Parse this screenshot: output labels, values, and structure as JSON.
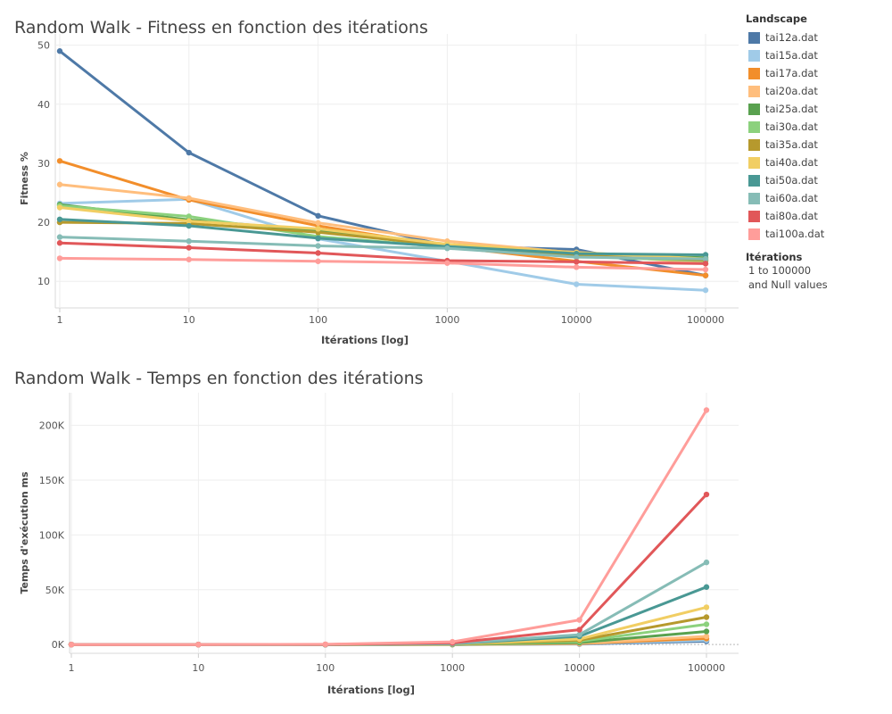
{
  "chart_data": [
    {
      "type": "line",
      "title": "Random Walk - Fitness en fonction des itérations",
      "xlabel": "Itérations [log]",
      "ylabel": "Fitness %",
      "xscale": "log",
      "x": [
        1,
        10,
        100,
        1000,
        10000,
        100000
      ],
      "x_tick_labels": [
        "1",
        "10",
        "100",
        "1000",
        "10000",
        "100000"
      ],
      "y_ticks": [
        10,
        20,
        30,
        40,
        50
      ],
      "y_tick_labels": [
        "10",
        "20",
        "30",
        "40",
        "50"
      ],
      "ylim": [
        5.5,
        51
      ],
      "grid": true,
      "series": [
        {
          "name": "tai12a.dat",
          "values": [
            49.0,
            31.8,
            21.1,
            16.0,
            15.4,
            11.0
          ]
        },
        {
          "name": "tai15a.dat",
          "values": [
            23.2,
            23.9,
            17.2,
            13.4,
            9.5,
            8.5
          ]
        },
        {
          "name": "tai17a.dat",
          "values": [
            30.4,
            23.8,
            19.4,
            15.9,
            13.4,
            11.0
          ]
        },
        {
          "name": "tai20a.dat",
          "values": [
            26.4,
            24.1,
            19.9,
            16.8,
            14.8,
            13.0
          ]
        },
        {
          "name": "tai25a.dat",
          "values": [
            23.0,
            20.4,
            18.6,
            15.9,
            14.6,
            14.0
          ]
        },
        {
          "name": "tai30a.dat",
          "values": [
            22.8,
            21.0,
            17.6,
            15.8,
            14.2,
            13.5
          ]
        },
        {
          "name": "tai35a.dat",
          "values": [
            20.0,
            19.8,
            18.3,
            16.1,
            14.5,
            13.6
          ]
        },
        {
          "name": "tai40a.dat",
          "values": [
            22.5,
            20.2,
            18.9,
            16.3,
            14.9,
            13.8
          ]
        },
        {
          "name": "tai50a.dat",
          "values": [
            20.5,
            19.4,
            17.3,
            15.9,
            14.7,
            14.5
          ]
        },
        {
          "name": "tai60a.dat",
          "values": [
            17.5,
            16.8,
            16.0,
            15.6,
            14.1,
            13.8
          ]
        },
        {
          "name": "tai80a.dat",
          "values": [
            16.5,
            15.7,
            14.8,
            13.5,
            13.3,
            13.0
          ]
        },
        {
          "name": "tai100a.dat",
          "values": [
            13.9,
            13.7,
            13.4,
            13.1,
            12.4,
            12.0
          ]
        }
      ]
    },
    {
      "type": "line",
      "title": "Random Walk - Temps en fonction des itérations",
      "xlabel": "Itérations [log]",
      "ylabel": "Temps d'exécution ms",
      "xscale": "log",
      "x": [
        1,
        10,
        100,
        1000,
        10000,
        100000
      ],
      "x_tick_labels": [
        "1",
        "10",
        "100",
        "1000",
        "10000",
        "100000"
      ],
      "y_ticks": [
        0,
        50000,
        100000,
        150000,
        200000
      ],
      "y_tick_labels": [
        "0K",
        "50K",
        "100K",
        "150K",
        "200K"
      ],
      "ylim": [
        -8000,
        225000
      ],
      "grid": true,
      "series": [
        {
          "name": "tai12a.dat",
          "values": [
            0,
            0,
            0,
            0,
            500,
            3000
          ]
        },
        {
          "name": "tai15a.dat",
          "values": [
            0,
            0,
            0,
            0,
            700,
            4000
          ]
        },
        {
          "name": "tai17a.dat",
          "values": [
            0,
            0,
            0,
            100,
            900,
            5500
          ]
        },
        {
          "name": "tai20a.dat",
          "values": [
            0,
            0,
            0,
            100,
            1100,
            7500
          ]
        },
        {
          "name": "tai25a.dat",
          "values": [
            0,
            0,
            0,
            150,
            1800,
            12000
          ]
        },
        {
          "name": "tai30a.dat",
          "values": [
            0,
            0,
            0,
            200,
            2800,
            18500
          ]
        },
        {
          "name": "tai35a.dat",
          "values": [
            0,
            0,
            0,
            300,
            3900,
            25000
          ]
        },
        {
          "name": "tai40a.dat",
          "values": [
            0,
            0,
            0,
            400,
            5000,
            34000
          ]
        },
        {
          "name": "tai50a.dat",
          "values": [
            0,
            0,
            0,
            600,
            7500,
            52500
          ]
        },
        {
          "name": "tai60a.dat",
          "values": [
            0,
            0,
            0,
            900,
            9000,
            75000
          ]
        },
        {
          "name": "tai80a.dat",
          "values": [
            0,
            0,
            100,
            1500,
            13500,
            137000
          ]
        },
        {
          "name": "tai100a.dat",
          "values": [
            0,
            0,
            200,
            2500,
            22500,
            214000
          ]
        }
      ]
    }
  ],
  "colors": {
    "tai12a.dat": "#4e79a7",
    "tai15a.dat": "#a0cbe8",
    "tai17a.dat": "#f28e2b",
    "tai20a.dat": "#ffbe7d",
    "tai25a.dat": "#59a14f",
    "tai30a.dat": "#8cd17d",
    "tai35a.dat": "#b6992d",
    "tai40a.dat": "#f1ce63",
    "tai50a.dat": "#499894",
    "tai60a.dat": "#86bcb6",
    "tai80a.dat": "#e15759",
    "tai100a.dat": "#ff9d9a"
  },
  "legend": {
    "title": "Landscape",
    "items": [
      "tai12a.dat",
      "tai15a.dat",
      "tai17a.dat",
      "tai20a.dat",
      "tai25a.dat",
      "tai30a.dat",
      "tai35a.dat",
      "tai40a.dat",
      "tai50a.dat",
      "tai60a.dat",
      "tai80a.dat",
      "tai100a.dat"
    ],
    "filter_title": "Itérations",
    "filter_range": "1 to 100000",
    "filter_null": "and Null values"
  }
}
